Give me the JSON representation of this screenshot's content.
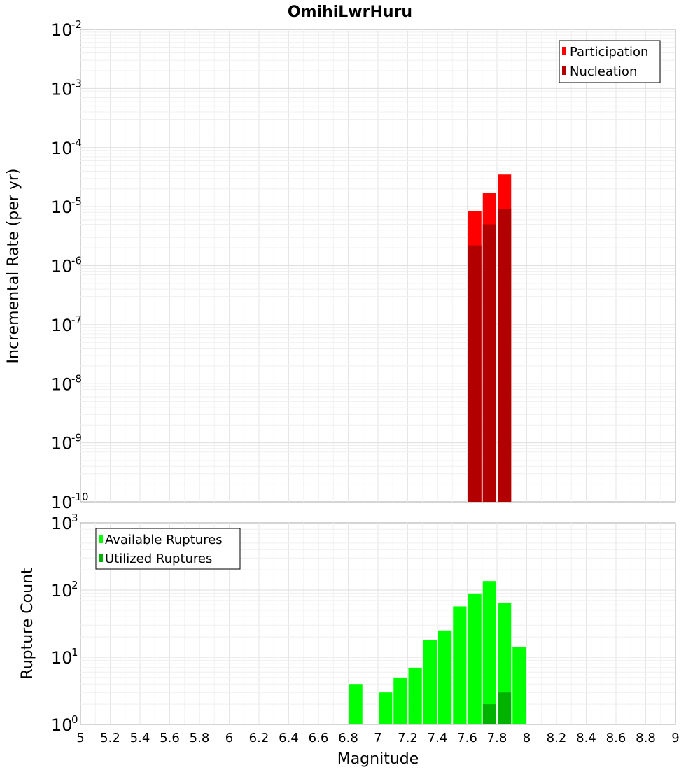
{
  "chart_data": [
    {
      "type": "bar",
      "title": "OmihiLwrHuru",
      "ylabel": "Incremental Rate (per yr)",
      "yscale": "log",
      "ylim_exponents": [
        -10,
        -2
      ],
      "xlim": [
        5,
        9
      ],
      "bin_width": 0.1,
      "legend_position": "top-right",
      "series": [
        {
          "name": "Participation",
          "color": "#ff0000",
          "x": [
            7.65,
            7.75,
            7.85
          ],
          "values": [
            8.5e-06,
            1.7e-05,
            3.5e-05
          ]
        },
        {
          "name": "Nucleation",
          "color": "#b20000",
          "x": [
            7.65,
            7.75,
            7.85
          ],
          "values": [
            2.2e-06,
            5e-06,
            9.2e-06
          ]
        }
      ]
    },
    {
      "type": "bar",
      "ylabel": "Rupture Count",
      "xlabel": "Magnitude",
      "yscale": "log",
      "ylim_exponents": [
        0,
        3
      ],
      "xlim": [
        5,
        9
      ],
      "xticks": [
        "5",
        "5.2",
        "5.4",
        "5.6",
        "5.8",
        "6",
        "6.2",
        "6.4",
        "6.6",
        "6.8",
        "7",
        "7.2",
        "7.4",
        "7.6",
        "7.8",
        "8",
        "8.2",
        "8.4",
        "8.6",
        "8.8",
        "9"
      ],
      "bin_width": 0.1,
      "legend_position": "top-left",
      "series": [
        {
          "name": "Available Ruptures",
          "color": "#00ff00",
          "x": [
            6.85,
            7.05,
            7.15,
            7.25,
            7.35,
            7.45,
            7.55,
            7.65,
            7.75,
            7.85,
            7.95
          ],
          "values": [
            4,
            3,
            5,
            7,
            18,
            25,
            57,
            89,
            136,
            65,
            14
          ]
        },
        {
          "name": "Utilized Ruptures",
          "color": "#00b200",
          "x": [
            7.65,
            7.75,
            7.85
          ],
          "values": [
            1,
            2,
            3
          ]
        }
      ]
    }
  ]
}
